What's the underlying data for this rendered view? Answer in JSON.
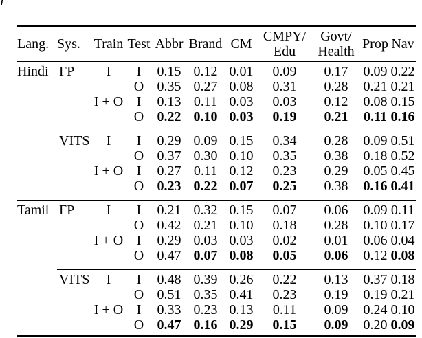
{
  "page": {
    "background": "#ffffff",
    "text_color": "#000000",
    "rule_color": "#000000",
    "artifact_glyph": "f"
  },
  "table": {
    "headers": [
      {
        "key": "lang",
        "l1": "Lang.",
        "l2": ""
      },
      {
        "key": "sys",
        "l1": "Sys.",
        "l2": ""
      },
      {
        "key": "train",
        "l1": "Train",
        "l2": ""
      },
      {
        "key": "test",
        "l1": "Test",
        "l2": ""
      },
      {
        "key": "abbr",
        "l1": "Abbr",
        "l2": ""
      },
      {
        "key": "brand",
        "l1": "Brand",
        "l2": ""
      },
      {
        "key": "cm",
        "l1": "CM",
        "l2": ""
      },
      {
        "key": "cmpy-edu",
        "l1": "CMPY/",
        "l2": "Edu"
      },
      {
        "key": "govt-health",
        "l1": "Govt/",
        "l2": "Health"
      },
      {
        "key": "prop",
        "l1": "Prop",
        "l2": ""
      },
      {
        "key": "nav",
        "l1": "Nav",
        "l2": ""
      }
    ],
    "rows": [
      {
        "lang": "Hindi",
        "sys": "FP",
        "train": "I",
        "test": "I",
        "values": [
          "0.15",
          "0.12",
          "0.01",
          "0.09",
          "0.17",
          "0.09",
          "0.22"
        ],
        "bold": [
          0,
          0,
          0,
          0,
          0,
          0,
          0
        ],
        "rule_after": ""
      },
      {
        "lang": "",
        "sys": "",
        "train": "",
        "test": "O",
        "values": [
          "0.35",
          "0.27",
          "0.08",
          "0.31",
          "0.28",
          "0.21",
          "0.21"
        ],
        "bold": [
          0,
          0,
          0,
          0,
          0,
          0,
          0
        ],
        "rule_after": ""
      },
      {
        "lang": "",
        "sys": "",
        "train": "I + O",
        "test": "I",
        "values": [
          "0.13",
          "0.11",
          "0.03",
          "0.03",
          "0.12",
          "0.08",
          "0.15"
        ],
        "bold": [
          0,
          0,
          0,
          0,
          0,
          0,
          0
        ],
        "rule_after": ""
      },
      {
        "lang": "",
        "sys": "",
        "train": "",
        "test": "O",
        "values": [
          "0.22",
          "0.10",
          "0.03",
          "0.19",
          "0.21",
          "0.11",
          "0.16"
        ],
        "bold": [
          1,
          1,
          1,
          1,
          1,
          1,
          1
        ],
        "rule_after": "partial"
      },
      {
        "lang": "",
        "sys": "VITS",
        "train": "I",
        "test": "I",
        "values": [
          "0.29",
          "0.09",
          "0.15",
          "0.34",
          "0.28",
          "0.09",
          "0.51"
        ],
        "bold": [
          0,
          0,
          0,
          0,
          0,
          0,
          0
        ],
        "rule_after": ""
      },
      {
        "lang": "",
        "sys": "",
        "train": "",
        "test": "O",
        "values": [
          "0.37",
          "0.30",
          "0.10",
          "0.35",
          "0.38",
          "0.18",
          "0.52"
        ],
        "bold": [
          0,
          0,
          0,
          0,
          0,
          0,
          0
        ],
        "rule_after": ""
      },
      {
        "lang": "",
        "sys": "",
        "train": "I + O",
        "test": "I",
        "values": [
          "0.27",
          "0.11",
          "0.12",
          "0.23",
          "0.29",
          "0.05",
          "0.45"
        ],
        "bold": [
          0,
          0,
          0,
          0,
          0,
          0,
          0
        ],
        "rule_after": ""
      },
      {
        "lang": "",
        "sys": "",
        "train": "",
        "test": "O",
        "values": [
          "0.23",
          "0.22",
          "0.07",
          "0.25",
          "0.38",
          "0.16",
          "0.41"
        ],
        "bold": [
          1,
          1,
          1,
          1,
          0,
          1,
          1
        ],
        "rule_after": "full"
      },
      {
        "lang": "Tamil",
        "sys": "FP",
        "train": "I",
        "test": "I",
        "values": [
          "0.21",
          "0.32",
          "0.15",
          "0.07",
          "0.06",
          "0.09",
          "0.11"
        ],
        "bold": [
          0,
          0,
          0,
          0,
          0,
          0,
          0
        ],
        "rule_after": ""
      },
      {
        "lang": "",
        "sys": "",
        "train": "",
        "test": "O",
        "values": [
          "0.42",
          "0.21",
          "0.10",
          "0.18",
          "0.28",
          "0.10",
          "0.17"
        ],
        "bold": [
          0,
          0,
          0,
          0,
          0,
          0,
          0
        ],
        "rule_after": ""
      },
      {
        "lang": "",
        "sys": "",
        "train": "I + O",
        "test": "I",
        "values": [
          "0.29",
          "0.03",
          "0.03",
          "0.02",
          "0.01",
          "0.06",
          "0.04"
        ],
        "bold": [
          0,
          0,
          0,
          0,
          0,
          0,
          0
        ],
        "rule_after": ""
      },
      {
        "lang": "",
        "sys": "",
        "train": "",
        "test": "O",
        "values": [
          "0.47",
          "0.07",
          "0.08",
          "0.05",
          "0.06",
          "0.12",
          "0.08"
        ],
        "bold": [
          0,
          1,
          1,
          1,
          1,
          0,
          1
        ],
        "rule_after": "partial"
      },
      {
        "lang": "",
        "sys": "VITS",
        "train": "I",
        "test": "I",
        "values": [
          "0.48",
          "0.39",
          "0.26",
          "0.22",
          "0.13",
          "0.37",
          "0.18"
        ],
        "bold": [
          0,
          0,
          0,
          0,
          0,
          0,
          0
        ],
        "rule_after": ""
      },
      {
        "lang": "",
        "sys": "",
        "train": "",
        "test": "O",
        "values": [
          "0.51",
          "0.35",
          "0.41",
          "0.23",
          "0.19",
          "0.19",
          "0.21"
        ],
        "bold": [
          0,
          0,
          0,
          0,
          0,
          0,
          0
        ],
        "rule_after": ""
      },
      {
        "lang": "",
        "sys": "",
        "train": "I + O",
        "test": "I",
        "values": [
          "0.33",
          "0.23",
          "0.13",
          "0.11",
          "0.09",
          "0.24",
          "0.10"
        ],
        "bold": [
          0,
          0,
          0,
          0,
          0,
          0,
          0
        ],
        "rule_after": ""
      },
      {
        "lang": "",
        "sys": "",
        "train": "",
        "test": "O",
        "values": [
          "0.47",
          "0.16",
          "0.29",
          "0.15",
          "0.09",
          "0.20",
          "0.09"
        ],
        "bold": [
          1,
          1,
          1,
          1,
          1,
          0,
          1
        ],
        "rule_after": ""
      }
    ]
  }
}
